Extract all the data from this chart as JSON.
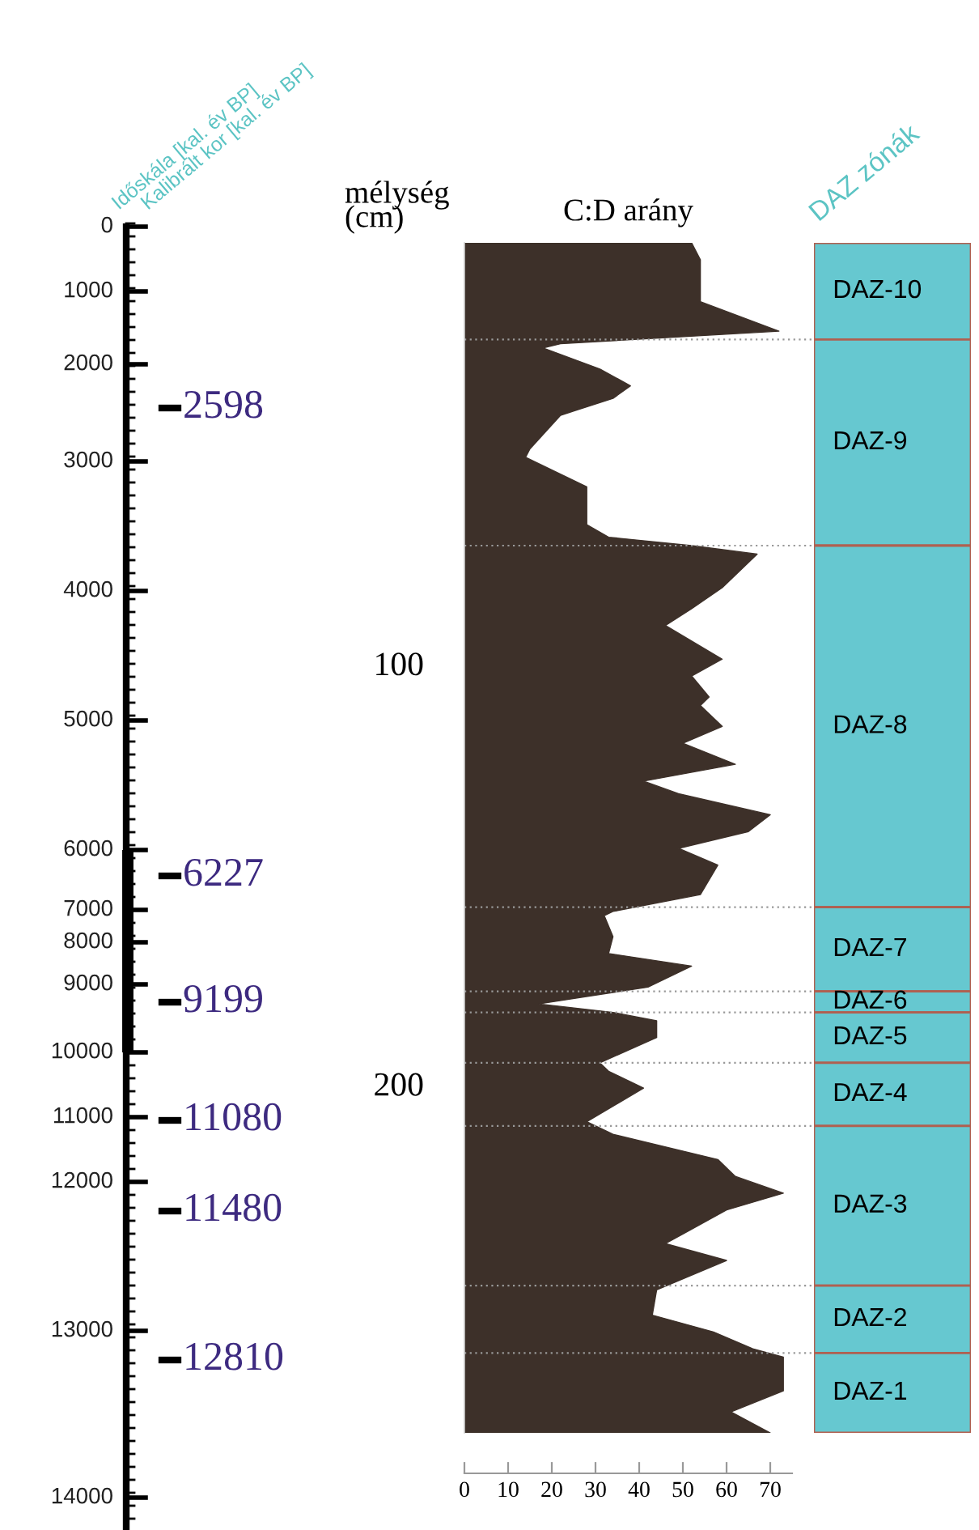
{
  "chart_data": [
    {
      "type": "other",
      "ylabel": "Időskála [kal. év BP]",
      "y2label": "Kalibrált kor [kal. év BP]",
      "categories": [
        "0",
        "1000",
        "2000",
        "3000",
        "4000",
        "5000",
        "6000",
        "7000",
        "8000",
        "9000",
        "10000",
        "11000",
        "12000",
        "13000",
        "14000"
      ],
      "annotations": [
        "2598",
        "6227",
        "9199",
        "11080",
        "11480",
        "12810"
      ]
    },
    {
      "type": "area",
      "orientation": "horizontal",
      "title": "C:D arány",
      "ylabel": "mélység (cm)",
      "color": "#3d3029",
      "x": [
        0,
        4,
        14,
        21,
        24,
        25,
        30,
        34,
        37,
        41,
        49,
        51,
        58,
        67,
        70,
        72,
        74,
        82,
        87,
        91,
        99,
        103,
        108,
        110,
        115,
        119,
        124,
        128,
        131,
        136,
        140,
        144,
        148,
        155,
        159,
        160,
        165,
        169,
        172,
        177,
        181,
        183,
        185,
        189,
        195,
        197,
        201,
        209,
        212,
        218,
        222,
        226,
        230,
        238,
        242,
        249,
        255,
        259,
        263,
        265,
        273,
        278,
        283
      ],
      "values": [
        52,
        54,
        54,
        72,
        22,
        18,
        31,
        38,
        34,
        22,
        15,
        14,
        28,
        28,
        33,
        52,
        67,
        59,
        52,
        46,
        59,
        52,
        56,
        54,
        59,
        50,
        62,
        41,
        49,
        70,
        65,
        49,
        58,
        54,
        34,
        32,
        34,
        33,
        52,
        42,
        17,
        34,
        44,
        44,
        31,
        33,
        41,
        28,
        34,
        58,
        62,
        73,
        60,
        46,
        60,
        44,
        43,
        57,
        66,
        73,
        73,
        61,
        70
      ],
      "xlim": [
        0,
        75
      ],
      "xticks": [
        0,
        10,
        20,
        30,
        40,
        50,
        60,
        70
      ],
      "ylim": [
        283,
        0
      ],
      "yticks": [
        100,
        200
      ],
      "grid": false,
      "ref_lines": [
        {
          "axis": "y",
          "value": 23,
          "color": "#999999",
          "line_style": "dotted"
        },
        {
          "axis": "y",
          "value": 72,
          "color": "#999999",
          "line_style": "dotted"
        },
        {
          "axis": "y",
          "value": 158,
          "color": "#999999",
          "line_style": "dotted"
        },
        {
          "axis": "y",
          "value": 178,
          "color": "#999999",
          "line_style": "dotted"
        },
        {
          "axis": "y",
          "value": 183,
          "color": "#999999",
          "line_style": "dotted"
        },
        {
          "axis": "y",
          "value": 195,
          "color": "#999999",
          "line_style": "dotted"
        },
        {
          "axis": "y",
          "value": 210,
          "color": "#999999",
          "line_style": "dotted"
        },
        {
          "axis": "y",
          "value": 248,
          "color": "#999999",
          "line_style": "dotted"
        },
        {
          "axis": "y",
          "value": 264,
          "color": "#999999",
          "line_style": "dotted"
        }
      ]
    },
    {
      "type": "bar",
      "stacked": true,
      "categories": [
        null
      ],
      "ylim": [
        283,
        0
      ],
      "tick_labels": false,
      "annotations": [
        "DAZ zónák"
      ],
      "series": [
        {
          "name": "DAZ-10",
          "color": "#66c8d0",
          "values": [
            23
          ]
        },
        {
          "name": "DAZ-9",
          "color": "#66c8d0",
          "values": [
            49
          ]
        },
        {
          "name": "DAZ-8",
          "color": "#66c8d0",
          "values": [
            86
          ]
        },
        {
          "name": "DAZ-7",
          "color": "#66c8d0",
          "values": [
            20
          ]
        },
        {
          "name": "DAZ-6",
          "color": "#66c8d0",
          "values": [
            5
          ]
        },
        {
          "name": "DAZ-5",
          "color": "#66c8d0",
          "values": [
            12
          ]
        },
        {
          "name": "DAZ-4",
          "color": "#66c8d0",
          "values": [
            15
          ]
        },
        {
          "name": "DAZ-3",
          "color": "#66c8d0",
          "values": [
            38
          ]
        },
        {
          "name": "DAZ-2",
          "color": "#66c8d0",
          "values": [
            16
          ]
        },
        {
          "name": "DAZ-1",
          "color": "#66c8d0",
          "values": [
            19
          ]
        }
      ]
    }
  ]
}
